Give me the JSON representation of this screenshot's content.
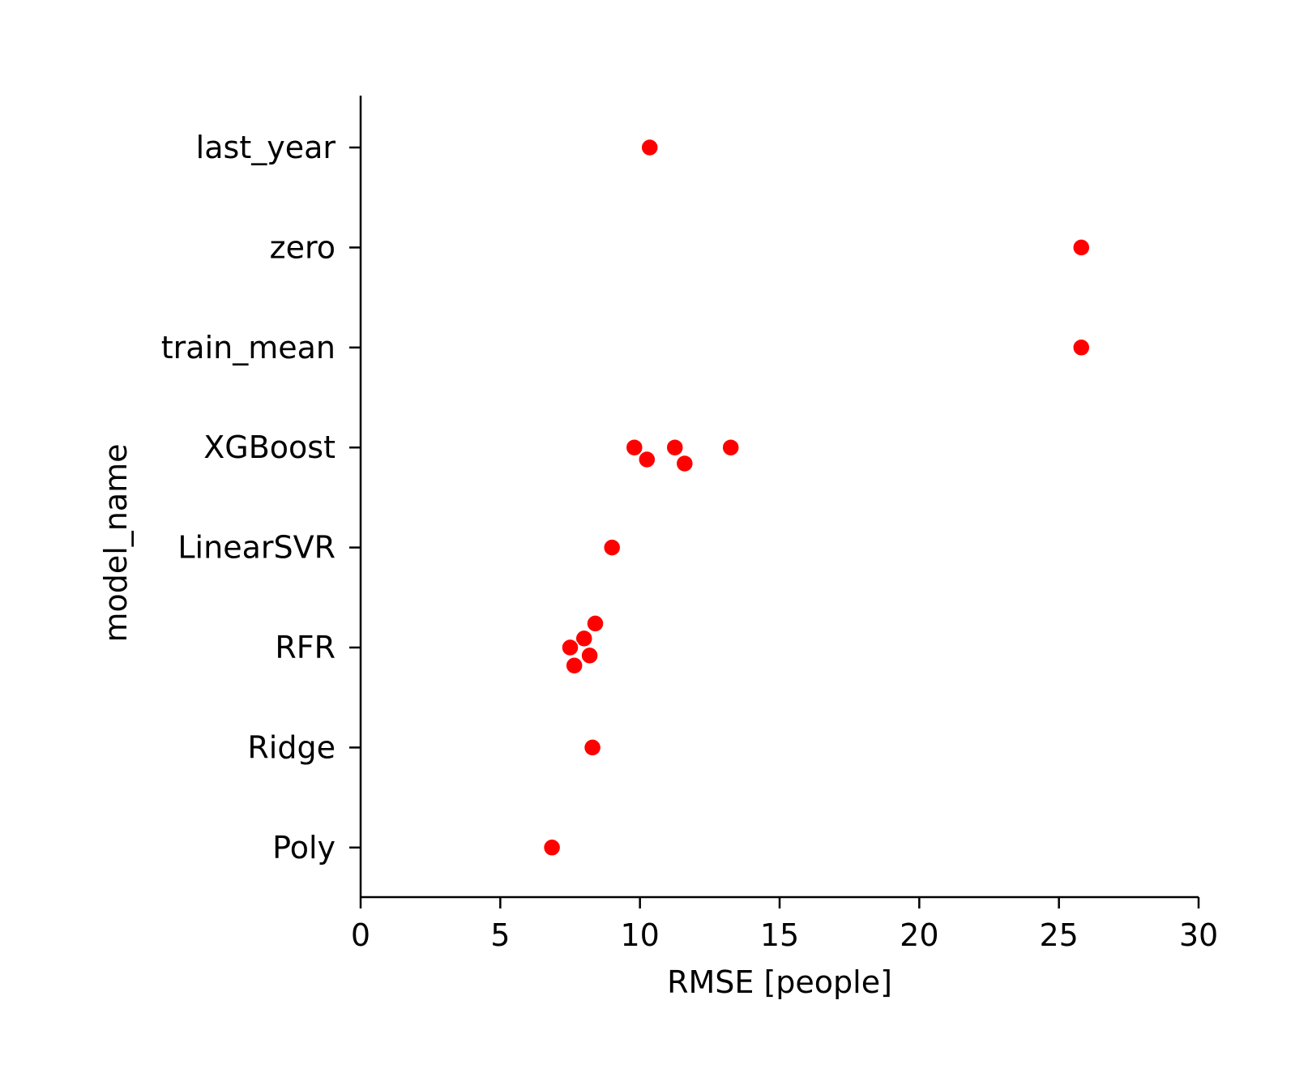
{
  "chart_data": {
    "type": "scatter",
    "orientation": "horizontal-strip",
    "title": "",
    "xlabel": "RMSE [people]",
    "ylabel": "model_name",
    "xlim": [
      0,
      30
    ],
    "xticks": [
      0,
      5,
      10,
      15,
      20,
      25,
      30
    ],
    "categories": [
      "last_year",
      "zero",
      "train_mean",
      "XGBoost",
      "LinearSVR",
      "RFR",
      "Ridge",
      "Poly"
    ],
    "marker_color": "#ff0000",
    "grid": false,
    "points": [
      {
        "category": "last_year",
        "x": 10.35,
        "jitter": 0.0
      },
      {
        "category": "zero",
        "x": 25.8,
        "jitter": 0.0
      },
      {
        "category": "train_mean",
        "x": 25.8,
        "jitter": 0.0
      },
      {
        "category": "XGBoost",
        "x": 9.8,
        "jitter": 0.0
      },
      {
        "category": "XGBoost",
        "x": 10.25,
        "jitter": 0.12
      },
      {
        "category": "XGBoost",
        "x": 11.25,
        "jitter": 0.0
      },
      {
        "category": "XGBoost",
        "x": 11.6,
        "jitter": 0.16
      },
      {
        "category": "XGBoost",
        "x": 13.25,
        "jitter": 0.0
      },
      {
        "category": "LinearSVR",
        "x": 9.0,
        "jitter": 0.0
      },
      {
        "category": "RFR",
        "x": 8.4,
        "jitter": -0.24
      },
      {
        "category": "RFR",
        "x": 8.0,
        "jitter": -0.09
      },
      {
        "category": "RFR",
        "x": 7.5,
        "jitter": 0.0
      },
      {
        "category": "RFR",
        "x": 8.2,
        "jitter": 0.08
      },
      {
        "category": "RFR",
        "x": 7.65,
        "jitter": 0.18
      },
      {
        "category": "Ridge",
        "x": 8.3,
        "jitter": 0.0
      },
      {
        "category": "Poly",
        "x": 6.85,
        "jitter": 0.0
      }
    ]
  }
}
